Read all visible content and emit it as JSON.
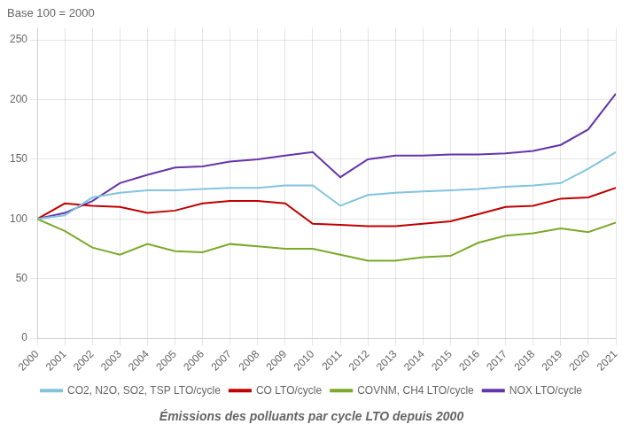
{
  "chart_data": {
    "type": "line",
    "title": "Émissions des polluants par cycle LTO depuis 2000",
    "subtitle": "Base 100 = 2000",
    "x": [
      2000,
      2001,
      2002,
      2003,
      2004,
      2005,
      2006,
      2007,
      2008,
      2009,
      2010,
      2011,
      2012,
      2013,
      2014,
      2015,
      2016,
      2017,
      2018,
      2019,
      2020,
      2021
    ],
    "series": [
      {
        "name": "CO2, N2O, SO2, TSP LTO/cycle",
        "color": "#82C4E0",
        "values": [
          100,
          103,
          118,
          122,
          124,
          124,
          125,
          126,
          126,
          128,
          128,
          111,
          120,
          122,
          123,
          124,
          125,
          127,
          128,
          130,
          142,
          156
        ]
      },
      {
        "name": "CO LTO/cycle",
        "color": "#C00000",
        "values": [
          100,
          113,
          111,
          110,
          105,
          107,
          113,
          115,
          115,
          113,
          96,
          95,
          94,
          94,
          96,
          98,
          104,
          110,
          111,
          117,
          118,
          126
        ]
      },
      {
        "name": "COVNM, CH4 LTO/cycle",
        "color": "#7AAA2A",
        "values": [
          100,
          90,
          76,
          70,
          79,
          73,
          72,
          79,
          77,
          75,
          75,
          70,
          65,
          65,
          68,
          69,
          80,
          86,
          88,
          92,
          89,
          97
        ]
      },
      {
        "name": "NOX LTO/cycle",
        "color": "#6633AA",
        "values": [
          100,
          105,
          115,
          130,
          137,
          143,
          144,
          148,
          150,
          153,
          156,
          135,
          150,
          153,
          153,
          154,
          154,
          155,
          157,
          162,
          175,
          205
        ]
      }
    ],
    "xlim": [
      2000,
      2021
    ],
    "xticks": [
      2000,
      2001,
      2002,
      2003,
      2004,
      2005,
      2006,
      2007,
      2008,
      2009,
      2010,
      2011,
      2012,
      2013,
      2014,
      2015,
      2016,
      2017,
      2018,
      2019,
      2020,
      2021
    ],
    "ylim": [
      0,
      260
    ],
    "yticks": [
      0,
      50,
      100,
      150,
      200,
      250
    ],
    "grid": true,
    "legend": "bottom"
  }
}
